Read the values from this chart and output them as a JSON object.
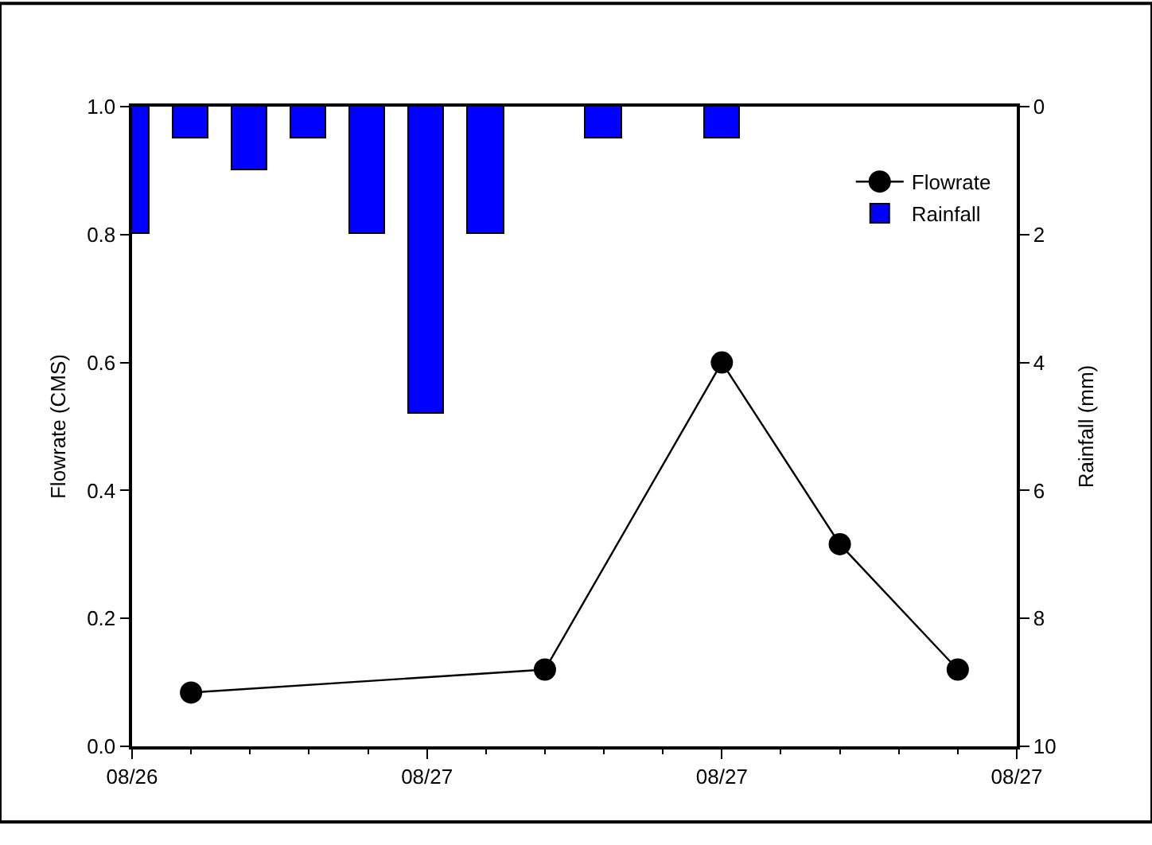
{
  "chart_data": {
    "type": "line",
    "ylabel": "Flowrate (CMS)",
    "y2label": "Rainfall (mm)",
    "xlim": [
      "--08-26T20:00",
      "--08-27T11:00"
    ],
    "xticks": [
      {
        "value": "--08-26T20:00",
        "label": "08/26"
      },
      {
        "value": "--08-26T21:00",
        "label": null
      },
      {
        "value": "--08-26T22:00",
        "label": null
      },
      {
        "value": "--08-26T23:00",
        "label": null
      },
      {
        "value": "--08-27T00:00",
        "label": null
      },
      {
        "value": "--08-27T01:00",
        "label": "08/27"
      },
      {
        "value": "--08-27T02:00",
        "label": null
      },
      {
        "value": "--08-27T03:00",
        "label": null
      },
      {
        "value": "--08-27T04:00",
        "label": null
      },
      {
        "value": "--08-27T05:00",
        "label": null
      },
      {
        "value": "--08-27T06:00",
        "label": "08/27"
      },
      {
        "value": "--08-27T07:00",
        "label": null
      },
      {
        "value": "--08-27T08:00",
        "label": null
      },
      {
        "value": "--08-27T09:00",
        "label": null
      },
      {
        "value": "--08-27T10:00",
        "label": null
      },
      {
        "value": "--08-27T11:00",
        "label": "08/27"
      }
    ],
    "ylim": [
      0,
      1.0
    ],
    "yticks": [
      {
        "value": 0,
        "label": "0.0"
      },
      {
        "value": 0.2,
        "label": "0.2"
      },
      {
        "value": 0.4,
        "label": "0.4"
      },
      {
        "value": 0.6,
        "label": "0.6"
      },
      {
        "value": 0.8,
        "label": "0.8"
      },
      {
        "value": 1.0,
        "label": "1.0"
      }
    ],
    "y2lim": [
      10,
      0
    ],
    "y2ticks": [
      0,
      2,
      4,
      6,
      8,
      10
    ],
    "legend": "top right",
    "marker": "circle",
    "series": [
      {
        "name": "Flowrate",
        "color": "#000000",
        "x": [
          "--08-26T21:00",
          "--08-27T03:00",
          "--08-27T06:00",
          "--08-27T08:00",
          "--08-27T10:00"
        ],
        "values": [
          0.084,
          0.12,
          0.6,
          0.316,
          0.12
        ]
      },
      {
        "name": "Rainfall",
        "type": "bar",
        "axis": "y2",
        "color": "#0000ff",
        "x": [
          "--08-26T20:00",
          "--08-26T21:00",
          "--08-26T22:00",
          "--08-26T23:00",
          "--08-27T00:00",
          "--08-27T01:00",
          "--08-27T02:00",
          "--08-27T04:00",
          "--08-27T06:00"
        ],
        "values": [
          2,
          0.5,
          1,
          0.5,
          2,
          4.8,
          2,
          0.5,
          0.5
        ]
      }
    ]
  }
}
